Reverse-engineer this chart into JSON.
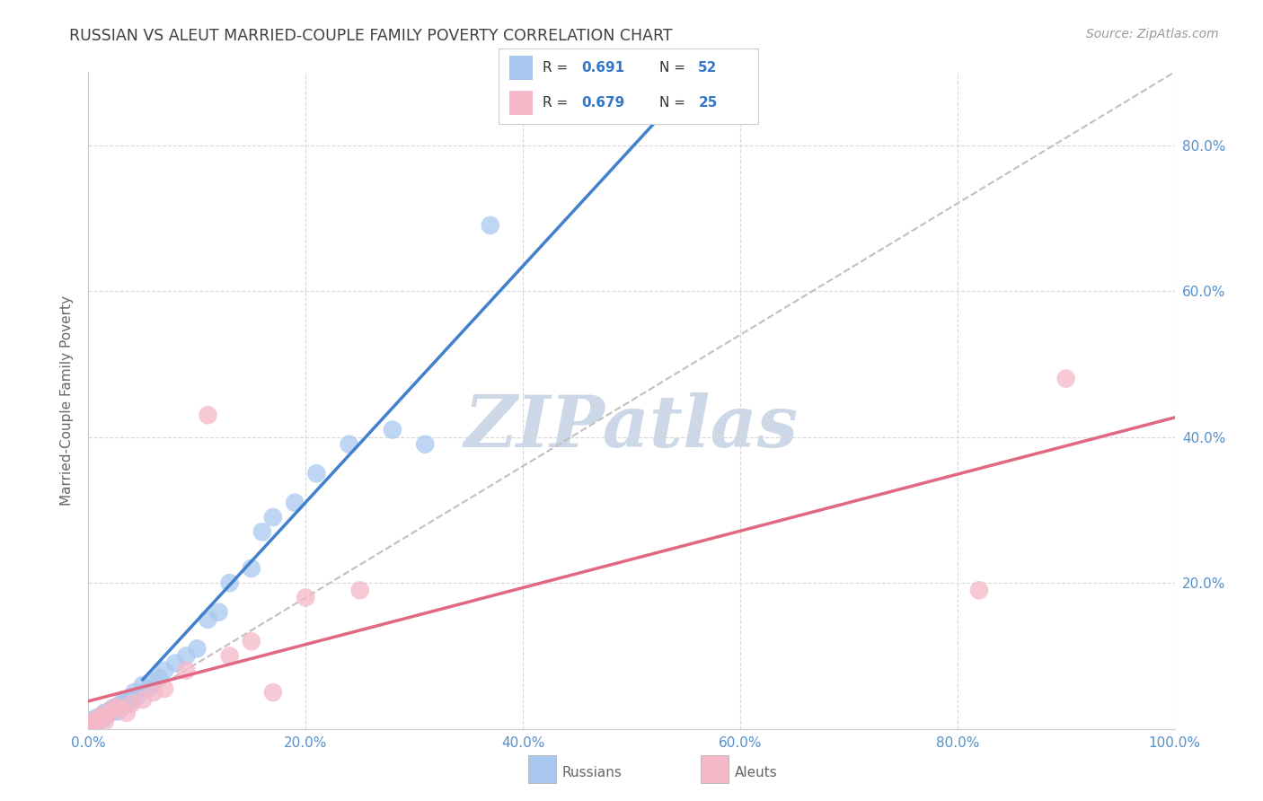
{
  "title": "RUSSIAN VS ALEUT MARRIED-COUPLE FAMILY POVERTY CORRELATION CHART",
  "source": "Source: ZipAtlas.com",
  "ylabel": "Married-Couple Family Poverty",
  "xlim": [
    0.0,
    1.0
  ],
  "ylim": [
    0.0,
    0.9
  ],
  "xticks": [
    0.0,
    0.2,
    0.4,
    0.6,
    0.8,
    1.0
  ],
  "yticks": [
    0.0,
    0.2,
    0.4,
    0.6,
    0.8
  ],
  "xticklabels": [
    "0.0%",
    "20.0%",
    "40.0%",
    "60.0%",
    "80.0%",
    "100.0%"
  ],
  "yticklabels_right": [
    "",
    "20.0%",
    "40.0%",
    "60.0%",
    "80.0%"
  ],
  "russian_color": "#a8c8f0",
  "aleut_color": "#f5b8c8",
  "russian_line_color": "#4080cc",
  "aleut_line_color": "#e06880",
  "diagonal_color": "#c0c0c0",
  "background_color": "#ffffff",
  "grid_color": "#d8d8d8",
  "title_color": "#404040",
  "watermark_color": "#ccd8e8",
  "russians_x": [
    0.002,
    0.003,
    0.004,
    0.005,
    0.006,
    0.007,
    0.008,
    0.009,
    0.01,
    0.011,
    0.012,
    0.013,
    0.014,
    0.015,
    0.016,
    0.017,
    0.018,
    0.02,
    0.021,
    0.022,
    0.024,
    0.025,
    0.027,
    0.029,
    0.03,
    0.032,
    0.034,
    0.036,
    0.038,
    0.04,
    0.042,
    0.045,
    0.05,
    0.055,
    0.06,
    0.065,
    0.07,
    0.08,
    0.09,
    0.1,
    0.11,
    0.12,
    0.13,
    0.15,
    0.16,
    0.17,
    0.19,
    0.21,
    0.24,
    0.28,
    0.31,
    0.37
  ],
  "russians_y": [
    0.005,
    0.01,
    0.008,
    0.012,
    0.007,
    0.015,
    0.009,
    0.011,
    0.013,
    0.016,
    0.018,
    0.014,
    0.02,
    0.022,
    0.017,
    0.019,
    0.021,
    0.025,
    0.023,
    0.028,
    0.026,
    0.03,
    0.024,
    0.032,
    0.035,
    0.033,
    0.038,
    0.04,
    0.036,
    0.042,
    0.05,
    0.045,
    0.06,
    0.055,
    0.065,
    0.07,
    0.08,
    0.09,
    0.1,
    0.11,
    0.15,
    0.16,
    0.2,
    0.22,
    0.27,
    0.29,
    0.31,
    0.35,
    0.39,
    0.41,
    0.39,
    0.69
  ],
  "aleuts_x": [
    0.002,
    0.004,
    0.006,
    0.008,
    0.01,
    0.012,
    0.015,
    0.018,
    0.02,
    0.025,
    0.03,
    0.035,
    0.04,
    0.05,
    0.06,
    0.07,
    0.09,
    0.11,
    0.13,
    0.15,
    0.17,
    0.2,
    0.25,
    0.82,
    0.9
  ],
  "aleuts_y": [
    0.006,
    0.01,
    0.008,
    0.012,
    0.015,
    0.018,
    0.01,
    0.02,
    0.025,
    0.03,
    0.028,
    0.022,
    0.035,
    0.04,
    0.05,
    0.055,
    0.08,
    0.43,
    0.1,
    0.12,
    0.05,
    0.18,
    0.19,
    0.19,
    0.48
  ],
  "legend_entries": [
    {
      "label": "R = 0.691  N = 52",
      "color": "#a8c8f0"
    },
    {
      "label": "R = 0.679  N = 25",
      "color": "#f5b8c8"
    }
  ],
  "bottom_legend": [
    "Russians",
    "Aleuts"
  ]
}
